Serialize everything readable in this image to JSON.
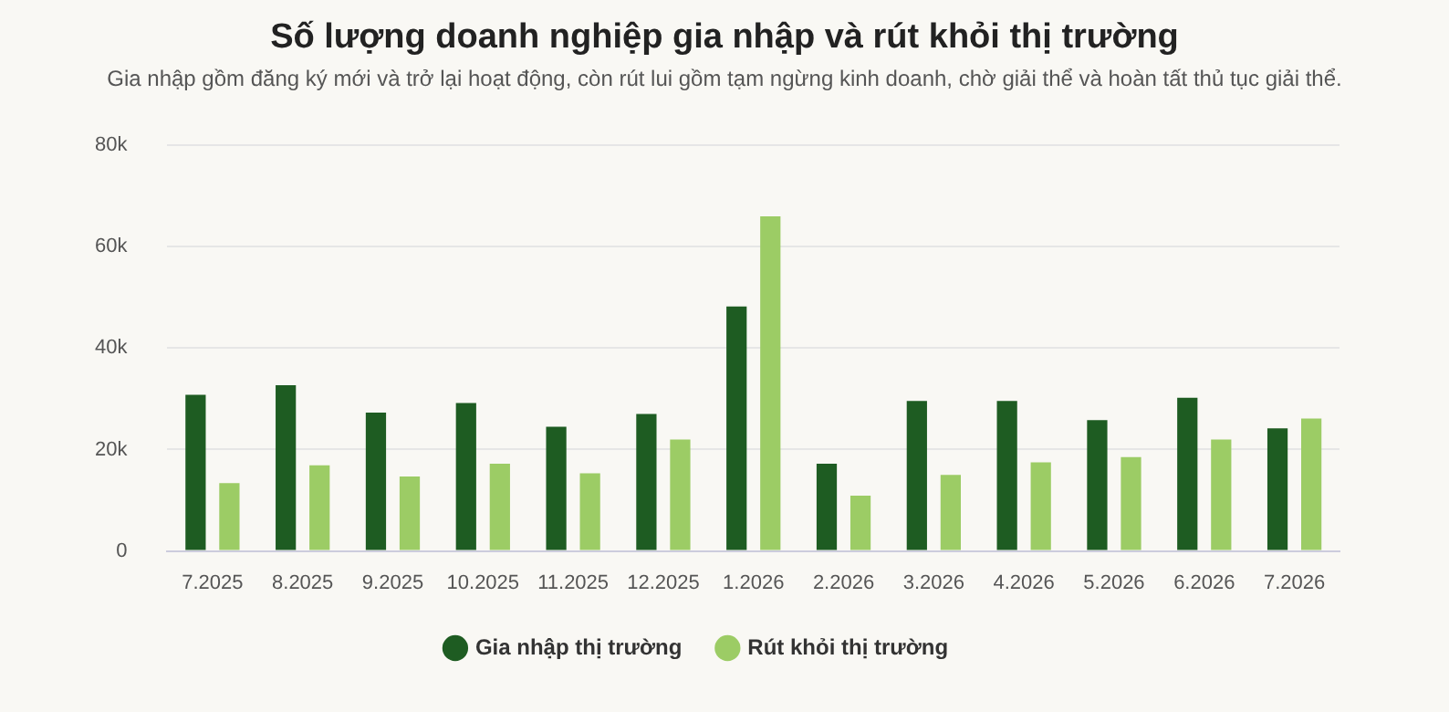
{
  "chart_data": {
    "type": "bar",
    "title": "Số lượng doanh nghiệp gia nhập và rút khỏi thị trường",
    "subtitle": "Gia nhập gồm đăng ký mới và trở lại hoạt động, còn rút lui gồm tạm ngừng kinh doanh, chờ giải thể và hoàn tất thủ tục giải thể.",
    "categories": [
      "7.2025",
      "8.2025",
      "9.2025",
      "10.2025",
      "11.2025",
      "12.2025",
      "1.2026",
      "2.2026",
      "3.2026",
      "4.2026",
      "5.2026",
      "6.2026",
      "7.2026"
    ],
    "series": [
      {
        "name": "Gia nhập thị trường",
        "color": "#1e5c22",
        "values": [
          30.8,
          32.7,
          27.3,
          29.2,
          24.5,
          27.0,
          48.2,
          17.2,
          29.6,
          29.6,
          25.8,
          30.2,
          24.2
        ]
      },
      {
        "name": "Rút khỏi thị trường",
        "color": "#9ccc65",
        "values": [
          13.4,
          16.9,
          14.7,
          17.2,
          15.3,
          22.0,
          66.0,
          10.9,
          15.0,
          17.5,
          18.5,
          22.0,
          26.1
        ]
      }
    ],
    "ylim": [
      0,
      80
    ],
    "yticks": [
      {
        "value": 0,
        "label": "0"
      },
      {
        "value": 20,
        "label": "20k"
      },
      {
        "value": 40,
        "label": "40k"
      },
      {
        "value": 60,
        "label": "60k"
      },
      {
        "value": 80,
        "label": "80k"
      }
    ],
    "grid": "y",
    "legend": "bottom"
  }
}
